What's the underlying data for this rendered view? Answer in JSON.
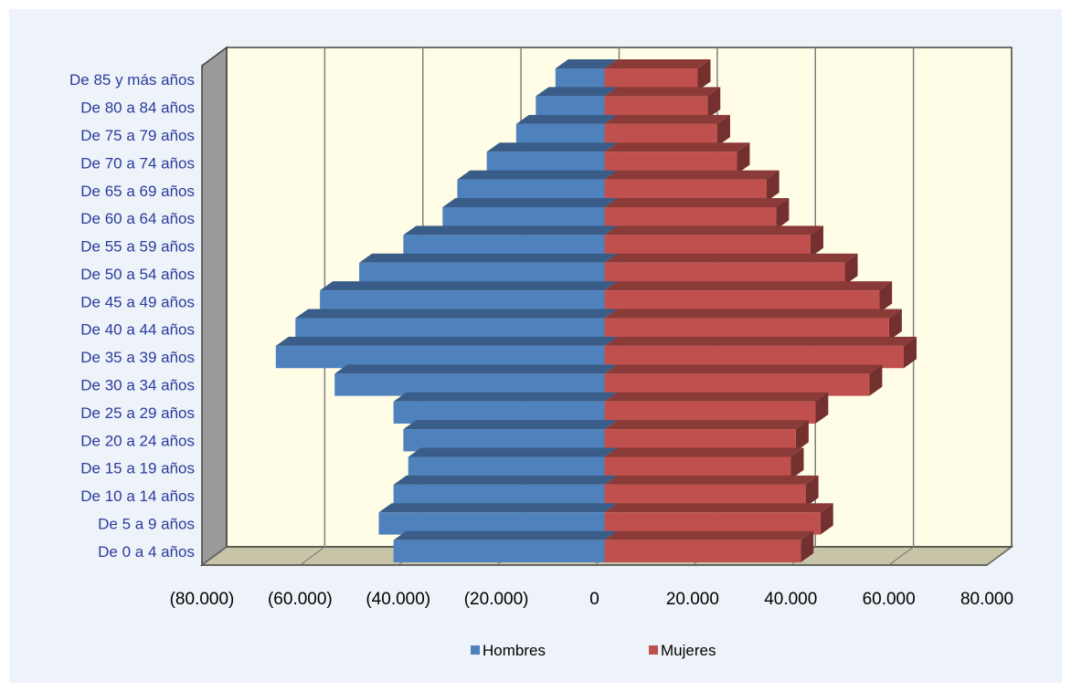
{
  "chart_data": {
    "type": "bar",
    "orientation": "horizontal",
    "style": "3d-population-pyramid",
    "categories": [
      "De 0 a 4 años",
      "De 5 a 9 años",
      "De 10 a 14 años",
      "De 15 a 19 años",
      "De 20 a 24 años",
      "De 25 a 29 años",
      "De 30 a 34 años",
      "De 35 a 39 años",
      "De 40 a 44 años",
      "De 45 a 49 años",
      "De 50 a 54 años",
      "De 55 a 59 años",
      "De 60 a 64 años",
      "De 65 a 69 años",
      "De 70 a 74 años",
      "De 75 a 79 años",
      "De 80 a 84 años",
      "De 85 y más años"
    ],
    "series": [
      {
        "name": "Hombres",
        "color": "#4f81bd",
        "values": [
          -43000,
          -46000,
          -43000,
          -40000,
          -41000,
          -43000,
          -55000,
          -67000,
          -63000,
          -58000,
          -50000,
          -41000,
          -33000,
          -30000,
          -24000,
          -18000,
          -14000,
          -10000
        ]
      },
      {
        "name": "Mujeres",
        "color": "#c0504d",
        "values": [
          40000,
          44000,
          41000,
          38000,
          39000,
          43000,
          54000,
          61000,
          58000,
          56000,
          49000,
          42000,
          35000,
          33000,
          27000,
          23000,
          21000,
          19000
        ]
      }
    ],
    "x_ticks": [
      "(80.000)",
      "(60.000)",
      "(40.000)",
      "(20.000)",
      "0",
      "20.000",
      "40.000",
      "60.000",
      "80.000"
    ],
    "xlim": [
      -80000,
      80000
    ],
    "grid": "vertical",
    "legend_position": "bottom",
    "title": "",
    "xlabel": "",
    "ylabel": "",
    "colors": {
      "plot_background": "#fffde6",
      "panel_background": "#eef3fa",
      "category_label": "#2b3b9a"
    }
  }
}
